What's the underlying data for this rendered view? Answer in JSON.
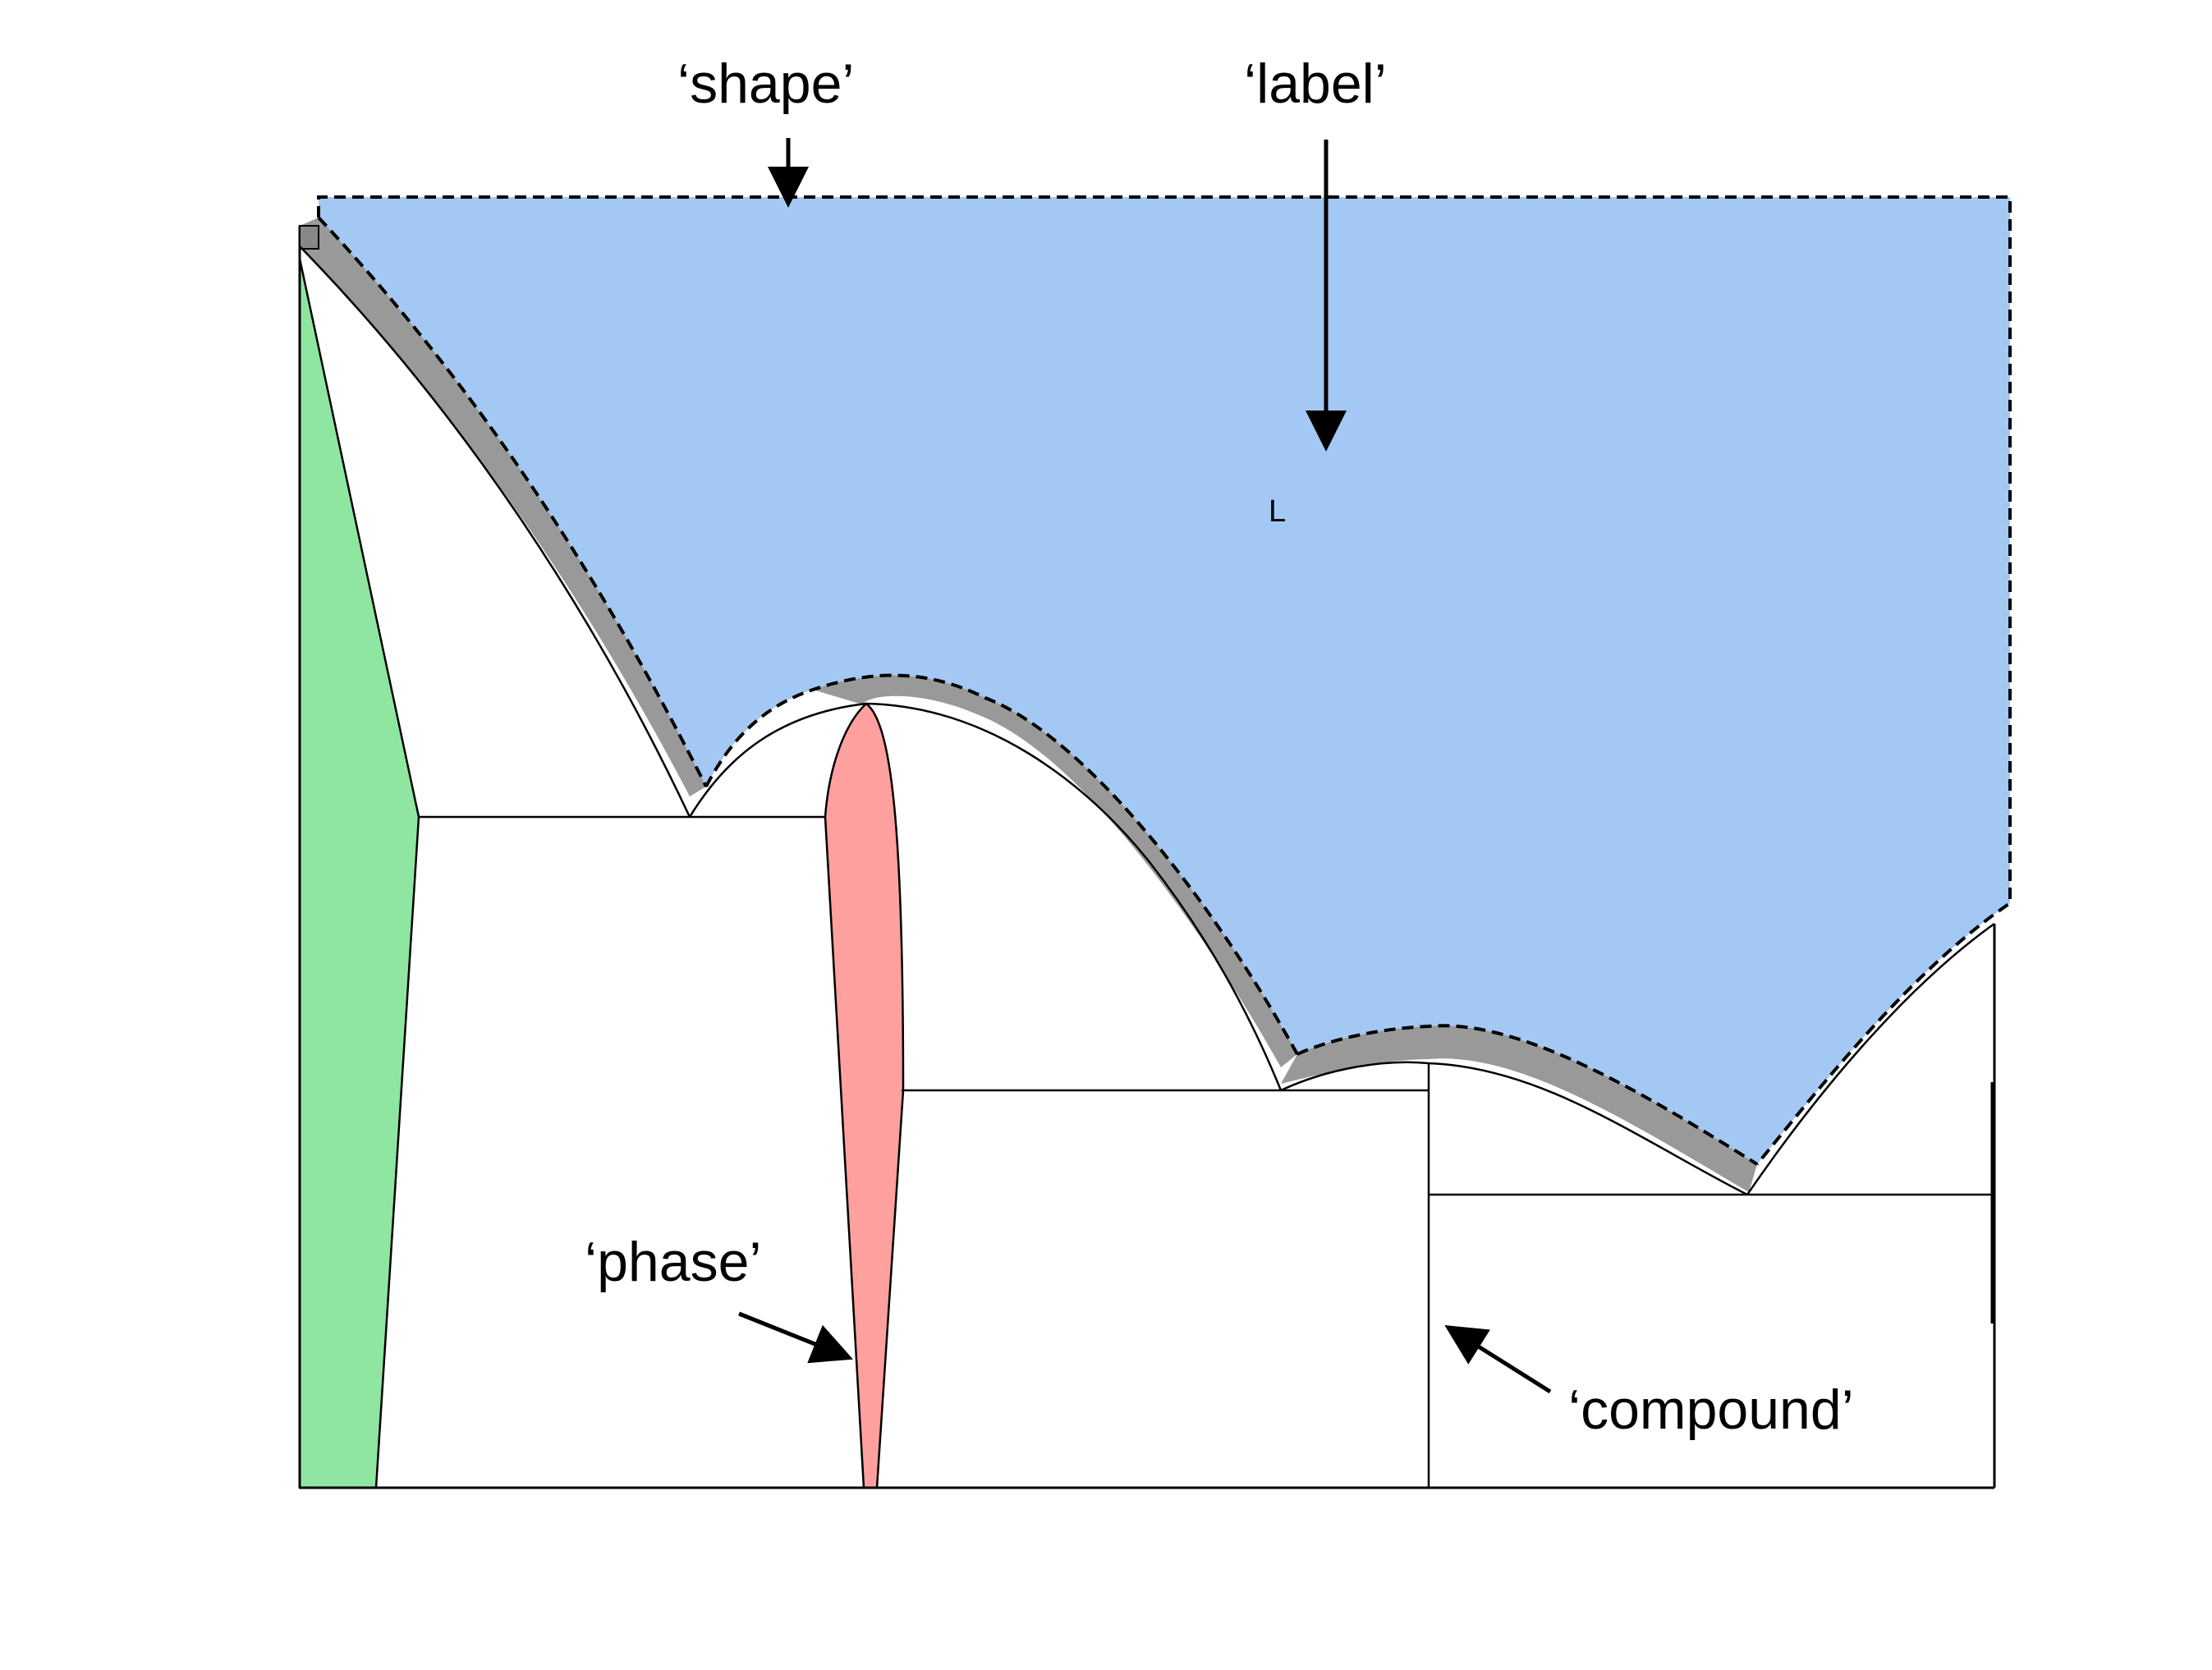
{
  "annotations": {
    "shape": "‘shape’",
    "label": "‘label’",
    "phase": "‘phase’",
    "compound": "‘compound’"
  },
  "regions": {
    "liquid_label": "L"
  },
  "colors": {
    "liquid_fill": "#a3c8f3",
    "left_solid_fill": "#8ee6a0",
    "middle_phase_fill": "#fda09e",
    "shadow": "#999999",
    "line": "#000000"
  }
}
